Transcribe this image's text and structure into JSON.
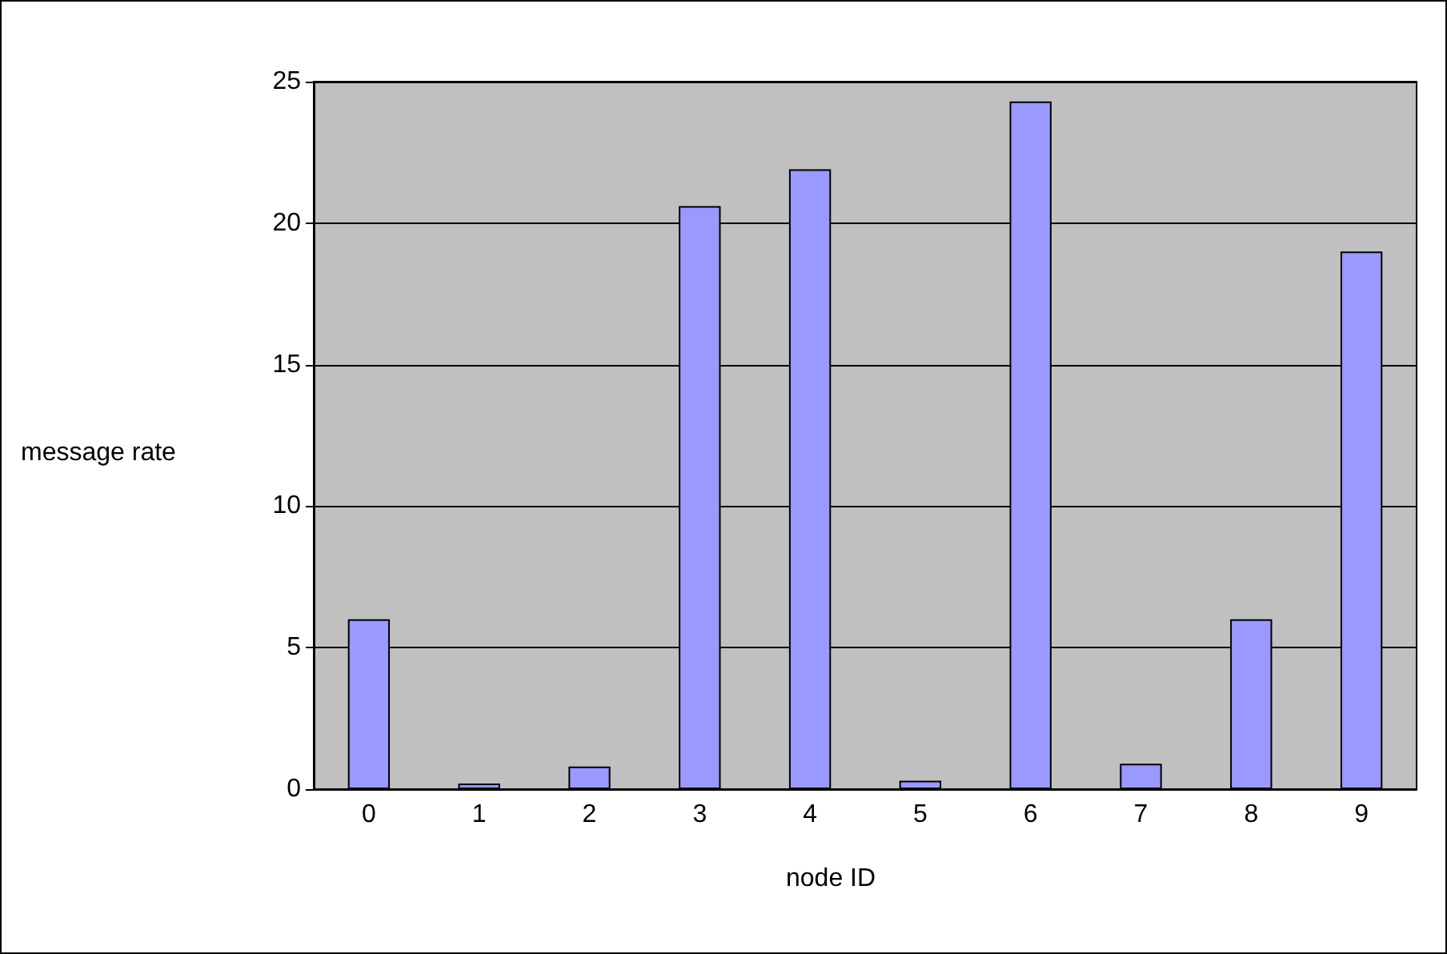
{
  "chart_data": {
    "type": "bar",
    "xlabel": "node ID",
    "ylabel": "message rate",
    "categories": [
      "0",
      "1",
      "2",
      "3",
      "4",
      "5",
      "6",
      "7",
      "8",
      "9"
    ],
    "values": [
      6.0,
      0.2,
      0.8,
      20.6,
      21.9,
      0.3,
      24.3,
      0.9,
      6.0,
      19.0
    ],
    "color": "#9999ff",
    "ylim": [
      0,
      25
    ],
    "yticks": [
      0,
      5,
      10,
      15,
      20,
      25
    ],
    "grid": "y"
  }
}
